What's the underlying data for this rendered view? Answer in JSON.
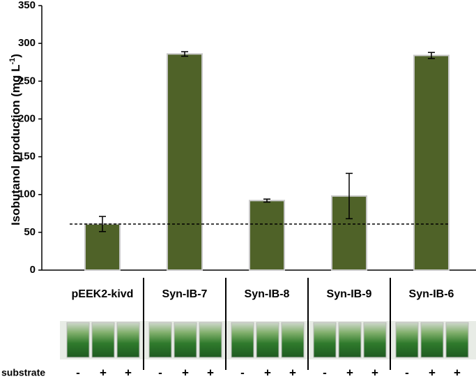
{
  "chart_data": {
    "type": "bar",
    "ylabel": "Isobutanol  production (mg L",
    "ylabel_sup": "-1",
    "ylabel_end": ")",
    "categories": [
      "pEEK2-kivd",
      "Syn-IB-7",
      "Syn-IB-8",
      "Syn-IB-9",
      "Syn-IB-6"
    ],
    "values": [
      61,
      286,
      92,
      98,
      284
    ],
    "errors": [
      10,
      3,
      2,
      30,
      4
    ],
    "color": "#4f6228",
    "reference_line": 61,
    "ylim": [
      0,
      350
    ],
    "yticks": [
      0,
      50,
      100,
      150,
      200,
      250,
      300,
      350
    ],
    "grid": false,
    "substrate": {
      "label": "substrate",
      "signs": [
        [
          "-",
          "+",
          "+"
        ],
        [
          "-",
          "+",
          "+"
        ],
        [
          "-",
          "+",
          "+"
        ],
        [
          "-",
          "+",
          "+"
        ],
        [
          "-",
          "+",
          "+"
        ]
      ]
    }
  }
}
